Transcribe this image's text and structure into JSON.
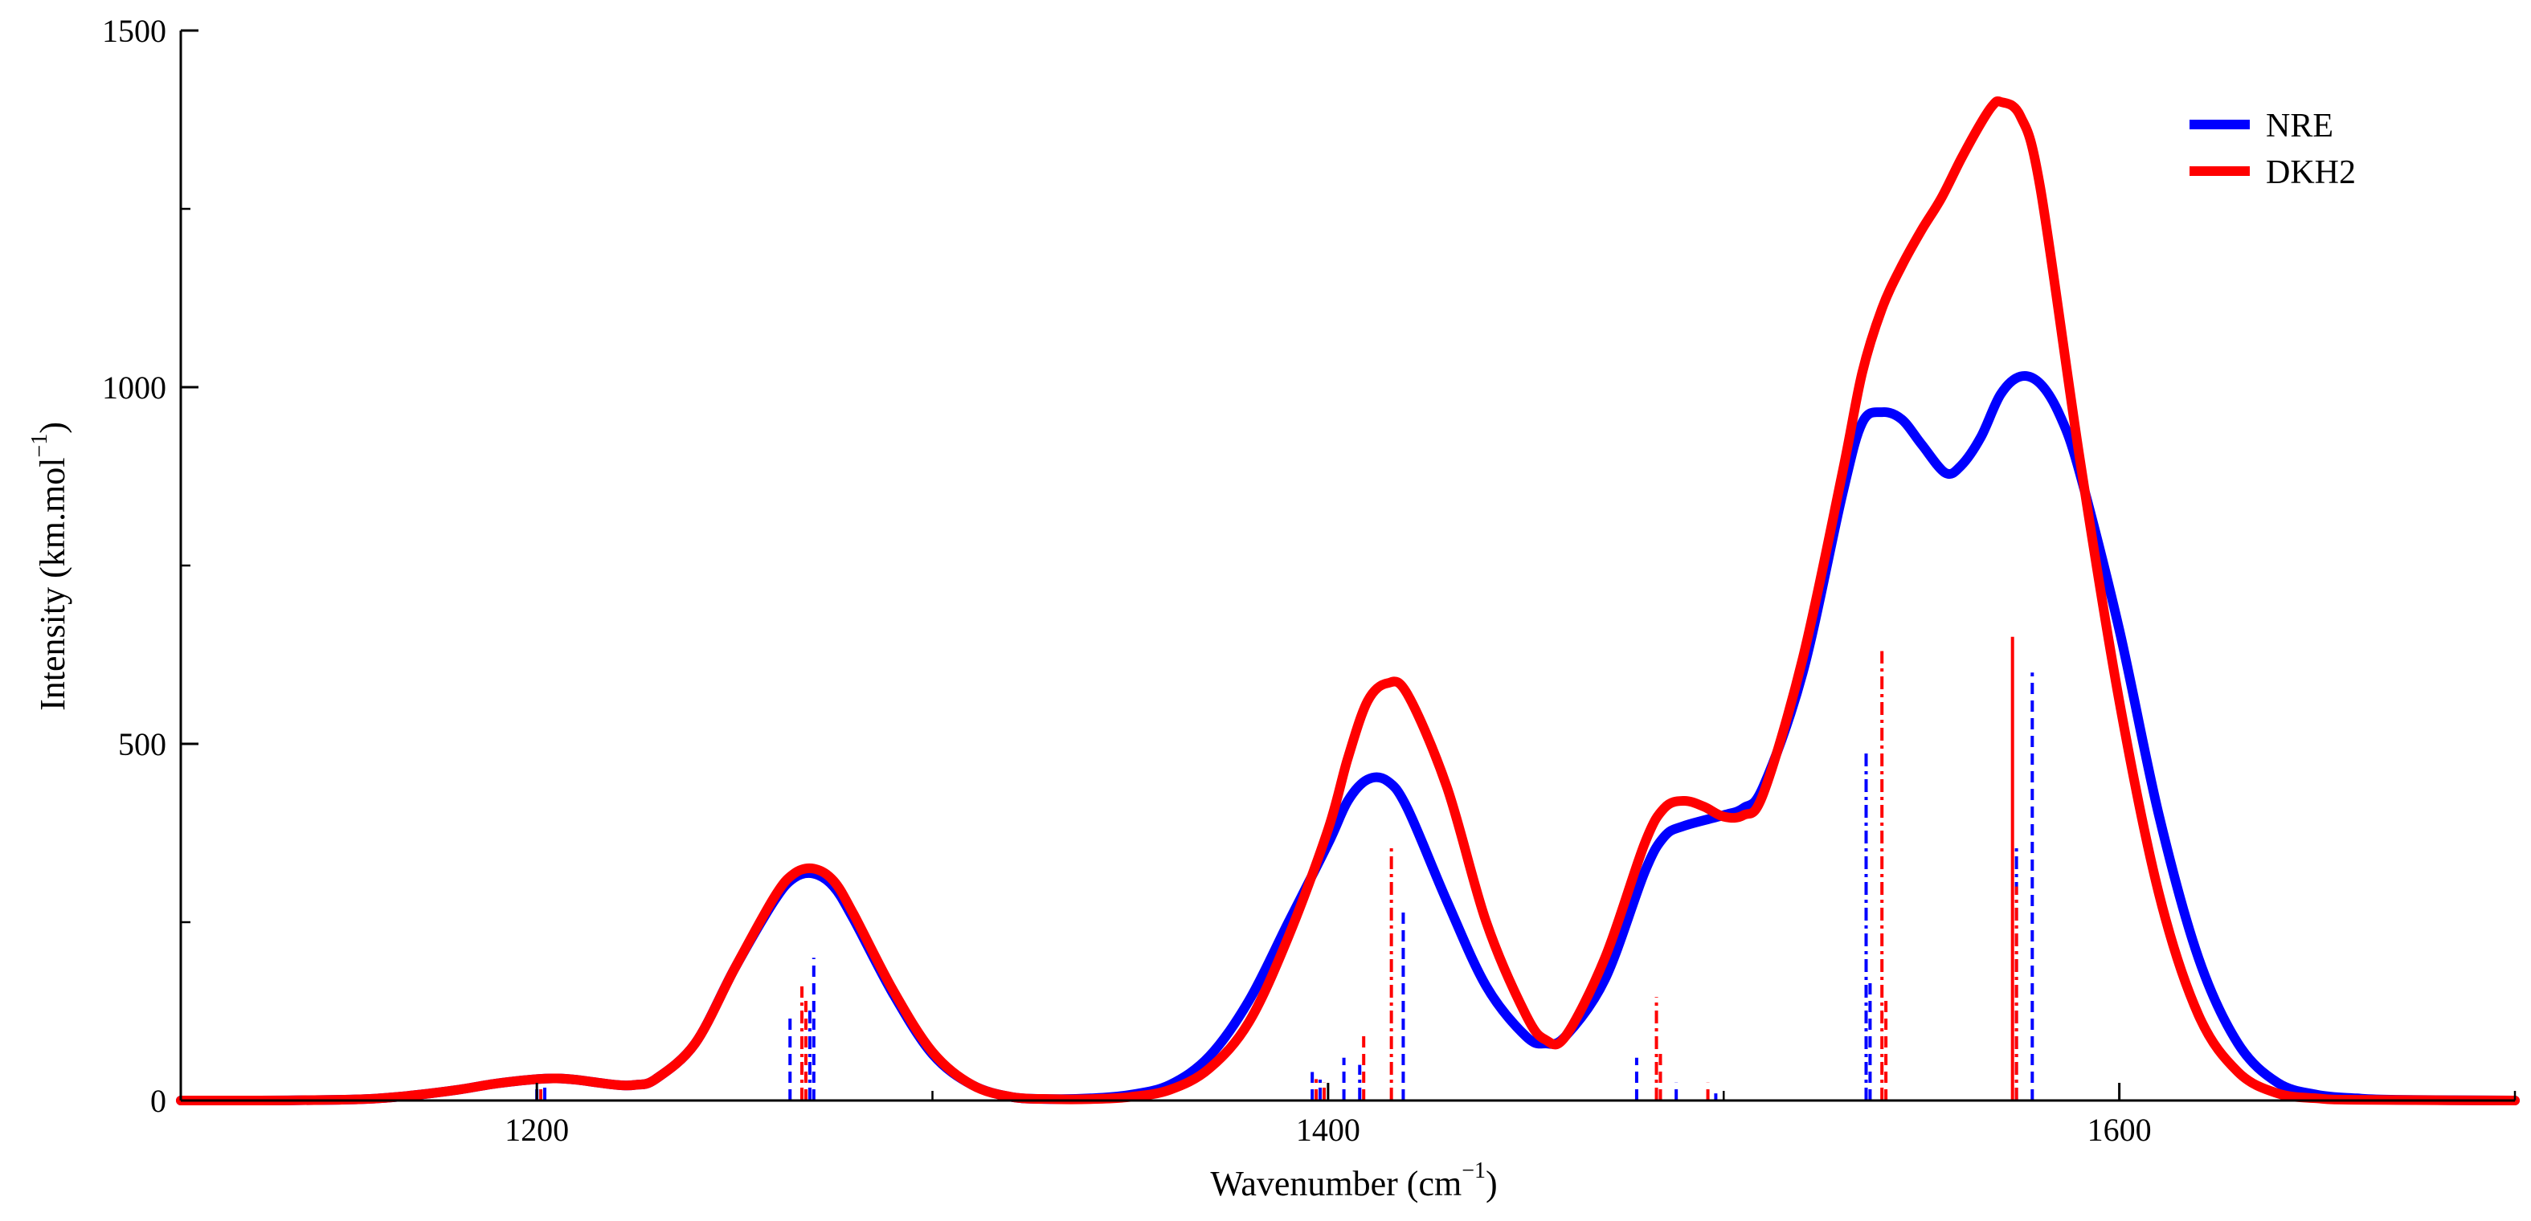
{
  "chart_data": {
    "type": "line",
    "title": "",
    "xlabel_main": "Wavenumber (cm",
    "xlabel_sup": "−1",
    "xlabel_end": ")",
    "ylabel_main": "Intensity (km.mol",
    "ylabel_sup": "−1",
    "ylabel_end": ")",
    "xlim": [
      1110,
      1700
    ],
    "ylim": [
      0,
      1500
    ],
    "x_ticks": [
      1200,
      1400,
      1600
    ],
    "x_tick_labels": [
      "1200",
      "1400",
      "1600"
    ],
    "x_minor_ticks": [
      1100,
      1300,
      1500,
      1700
    ],
    "y_ticks": [
      0,
      500,
      1000,
      1500
    ],
    "y_tick_labels": [
      "0",
      "500",
      "1000",
      "1500"
    ],
    "y_minor_ticks": [
      250,
      750,
      1250
    ],
    "legend_position": "top-right",
    "colors": {
      "nre": "#0000ff",
      "dkh2": "#ff0000",
      "axis": "#000000"
    },
    "series": [
      {
        "name": "NRE",
        "color": "#0000ff",
        "x": [
          1110,
          1130,
          1150,
          1160,
          1170,
          1180,
          1190,
          1200,
          1205,
          1210,
          1220,
          1225,
          1230,
          1240,
          1250,
          1260,
          1265,
          1270,
          1275,
          1280,
          1290,
          1300,
          1310,
          1320,
          1330,
          1340,
          1350,
          1360,
          1370,
          1380,
          1390,
          1400,
          1405,
          1410,
          1415,
          1420,
          1430,
          1440,
          1450,
          1455,
          1460,
          1470,
          1480,
          1485,
          1490,
          1500,
          1505,
          1510,
          1520,
          1530,
          1535,
          1540,
          1545,
          1550,
          1556,
          1560,
          1565,
          1570,
          1575,
          1580,
          1585,
          1590,
          1600,
          1610,
          1620,
          1630,
          1640,
          1650,
          1660,
          1670,
          1700
        ],
        "values": [
          0,
          0,
          1,
          3,
          8,
          15,
          24,
          30,
          31,
          29,
          22,
          22,
          30,
          80,
          185,
          280,
          312,
          318,
          300,
          255,
          150,
          65,
          22,
          5,
          2,
          3,
          8,
          22,
          62,
          140,
          250,
          360,
          420,
          450,
          448,
          410,
          280,
          160,
          90,
          80,
          90,
          170,
          320,
          370,
          385,
          400,
          410,
          440,
          600,
          850,
          950,
          965,
          955,
          920,
          880,
          890,
          930,
          990,
          1015,
          1005,
          960,
          880,
          660,
          400,
          200,
          80,
          25,
          8,
          3,
          1,
          0
        ]
      },
      {
        "name": "DKH2",
        "color": "#ff0000",
        "x": [
          1110,
          1130,
          1150,
          1160,
          1170,
          1180,
          1190,
          1200,
          1205,
          1210,
          1220,
          1225,
          1230,
          1240,
          1250,
          1260,
          1265,
          1270,
          1275,
          1280,
          1290,
          1300,
          1310,
          1320,
          1330,
          1340,
          1350,
          1360,
          1370,
          1380,
          1390,
          1400,
          1405,
          1410,
          1415,
          1420,
          1430,
          1440,
          1450,
          1455,
          1460,
          1470,
          1480,
          1485,
          1490,
          1495,
          1500,
          1505,
          1510,
          1520,
          1530,
          1535,
          1540,
          1545,
          1550,
          1555,
          1560,
          1565,
          1568,
          1570,
          1575,
          1580,
          1590,
          1600,
          1610,
          1620,
          1630,
          1640,
          1650,
          1660,
          1700
        ],
        "values": [
          0,
          0,
          1,
          3,
          8,
          15,
          24,
          30,
          31,
          29,
          22,
          22,
          30,
          80,
          185,
          285,
          318,
          325,
          308,
          262,
          155,
          68,
          22,
          5,
          2,
          2,
          5,
          15,
          45,
          110,
          230,
          380,
          480,
          560,
          585,
          570,
          440,
          250,
          120,
          85,
          90,
          200,
          360,
          410,
          420,
          412,
          398,
          400,
          430,
          620,
          880,
          1020,
          1110,
          1170,
          1220,
          1265,
          1320,
          1370,
          1395,
          1400,
          1380,
          1280,
          900,
          560,
          290,
          120,
          40,
          10,
          3,
          1,
          0
        ]
      }
    ],
    "sticks": [
      {
        "series": "NRE",
        "x": 1200,
        "value": 30,
        "style": "dash"
      },
      {
        "series": "NRE",
        "x": 1202,
        "value": 25,
        "style": "dashdot"
      },
      {
        "series": "NRE",
        "x": 1264,
        "value": 120,
        "style": "dash"
      },
      {
        "series": "NRE",
        "x": 1270,
        "value": 200,
        "style": "dash"
      },
      {
        "series": "NRE",
        "x": 1269,
        "value": 130,
        "style": "dashdot"
      },
      {
        "series": "NRE",
        "x": 1396,
        "value": 40,
        "style": "dash"
      },
      {
        "series": "NRE",
        "x": 1398,
        "value": 35,
        "style": "dashdot"
      },
      {
        "series": "NRE",
        "x": 1404,
        "value": 60,
        "style": "dash"
      },
      {
        "series": "NRE",
        "x": 1408,
        "value": 50,
        "style": "dashdot"
      },
      {
        "series": "NRE",
        "x": 1419,
        "value": 270,
        "style": "dash"
      },
      {
        "series": "NRE",
        "x": 1478,
        "value": 60,
        "style": "dash"
      },
      {
        "series": "NRE",
        "x": 1484,
        "value": 55,
        "style": "dash"
      },
      {
        "series": "NRE",
        "x": 1488,
        "value": 25,
        "style": "dash"
      },
      {
        "series": "NRE",
        "x": 1498,
        "value": 10,
        "style": "dashdot"
      },
      {
        "series": "NRE",
        "x": 1536,
        "value": 490,
        "style": "dashdot"
      },
      {
        "series": "NRE",
        "x": 1537,
        "value": 170,
        "style": "dash"
      },
      {
        "series": "NRE",
        "x": 1578,
        "value": 600,
        "style": "dash"
      },
      {
        "series": "NRE",
        "x": 1574,
        "value": 360,
        "style": "dashdot"
      },
      {
        "series": "DKH2",
        "x": 1201,
        "value": 28,
        "style": "dash"
      },
      {
        "series": "DKH2",
        "x": 1267,
        "value": 160,
        "style": "dashdot"
      },
      {
        "series": "DKH2",
        "x": 1268,
        "value": 140,
        "style": "dash"
      },
      {
        "series": "DKH2",
        "x": 1397,
        "value": 30,
        "style": "dash"
      },
      {
        "series": "DKH2",
        "x": 1399,
        "value": 25,
        "style": "dashdot"
      },
      {
        "series": "DKH2",
        "x": 1409,
        "value": 95,
        "style": "dash"
      },
      {
        "series": "DKH2",
        "x": 1416,
        "value": 355,
        "style": "dashdot"
      },
      {
        "series": "DKH2",
        "x": 1483,
        "value": 145,
        "style": "dashdot"
      },
      {
        "series": "DKH2",
        "x": 1484,
        "value": 70,
        "style": "dash"
      },
      {
        "series": "DKH2",
        "x": 1496,
        "value": 25,
        "style": "dash"
      },
      {
        "series": "DKH2",
        "x": 1540,
        "value": 630,
        "style": "dashdot"
      },
      {
        "series": "DKH2",
        "x": 1541,
        "value": 140,
        "style": "dash"
      },
      {
        "series": "DKH2",
        "x": 1573,
        "value": 650,
        "style": "solid"
      },
      {
        "series": "DKH2",
        "x": 1574,
        "value": 300,
        "style": "dashdot"
      }
    ]
  }
}
